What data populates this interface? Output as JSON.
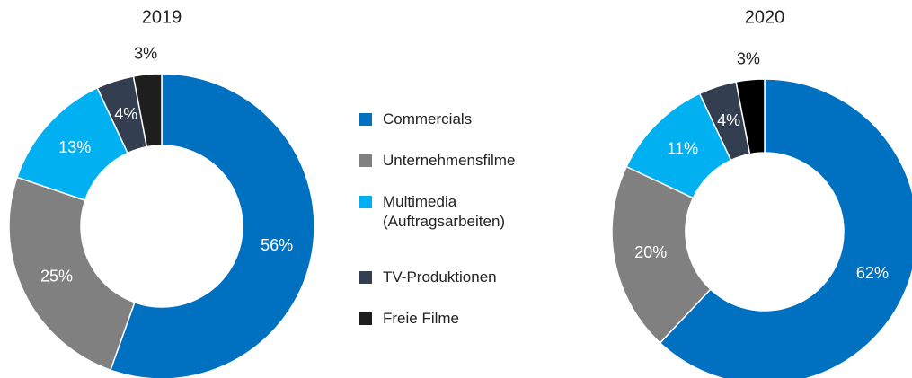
{
  "chart_data": [
    {
      "type": "pie",
      "title": "2019",
      "categories": [
        "Commercials",
        "Unternehmensfilme",
        "Multimedia (Auftragsarbeiten)",
        "TV-Produktionen",
        "Freie Filme"
      ],
      "values": [
        56,
        25,
        13,
        4,
        3
      ],
      "value_labels": [
        "56%",
        "25%",
        "13%",
        "4%",
        "3%"
      ],
      "colors": [
        "#0070c0",
        "#808080",
        "#00b0f0",
        "#333f50",
        "#1e1e1e"
      ],
      "legend": "center"
    },
    {
      "type": "pie",
      "title": "2020",
      "categories": [
        "Commercials",
        "Unternehmensfilme",
        "Multimedia (Auftragsarbeiten)",
        "TV-Produktionen",
        "Freie Filme"
      ],
      "values": [
        62,
        20,
        11,
        4,
        3
      ],
      "value_labels": [
        "62%",
        "20%",
        "11%",
        "4%",
        "3%"
      ],
      "colors": [
        "#0070c0",
        "#808080",
        "#00b0f0",
        "#333f50",
        "#000000"
      ]
    }
  ]
}
